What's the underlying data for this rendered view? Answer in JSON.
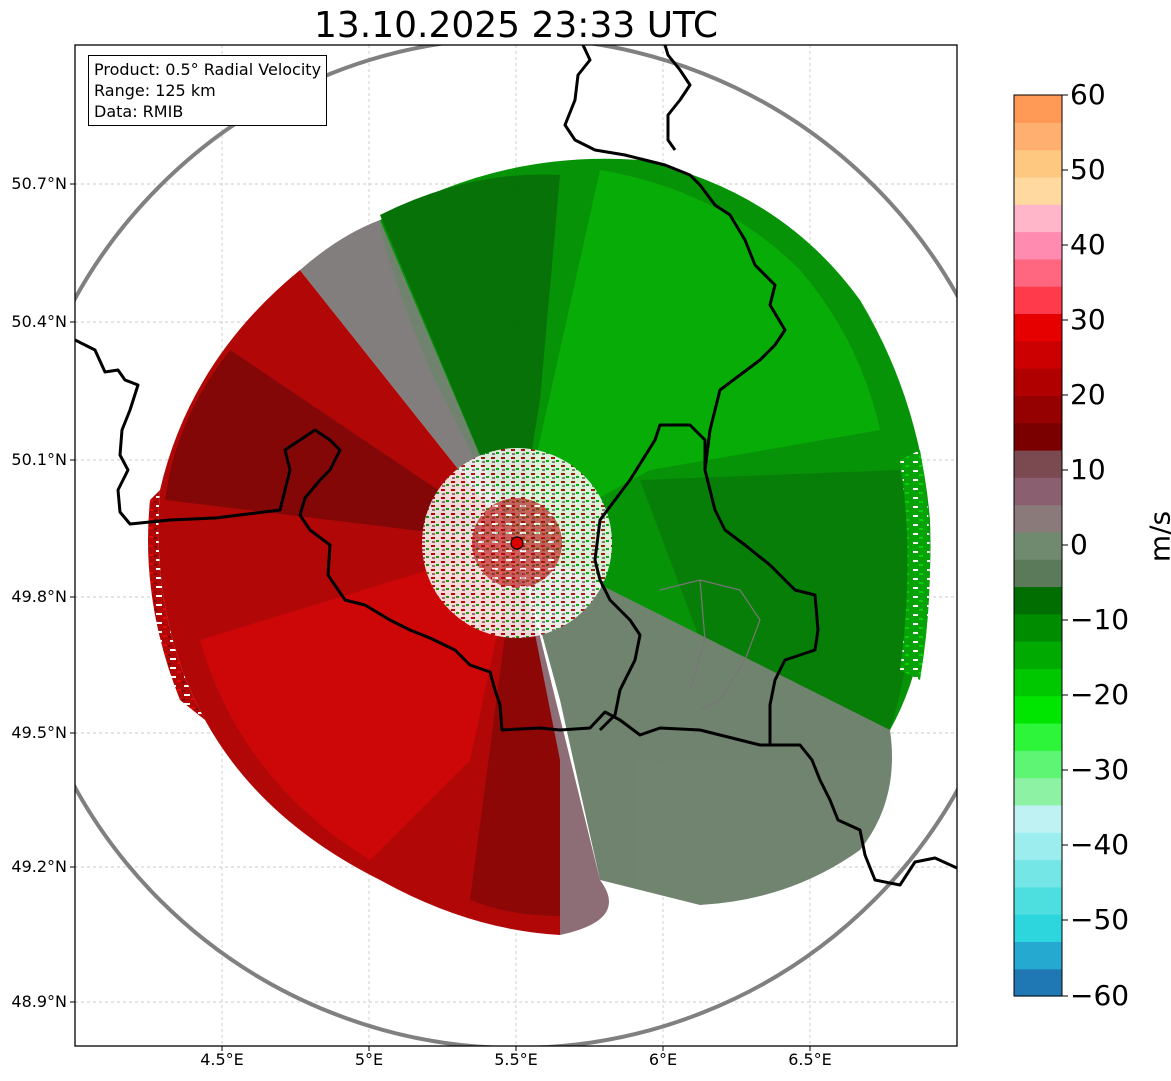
{
  "title": "13.10.2025 23:33 UTC",
  "info_box": {
    "product": "Product: 0.5° Radial Velocity",
    "range": "Range: 125 km",
    "data": "Data: RMIB"
  },
  "axes": {
    "lat_ticks": [
      "50.7°N",
      "50.4°N",
      "50.1°N",
      "49.8°N",
      "49.5°N",
      "49.2°N",
      "48.9°N"
    ],
    "lon_ticks": [
      "4.5°E",
      "5°E",
      "5.5°E",
      "6°E",
      "6.5°E"
    ]
  },
  "colorbar": {
    "label": "m/s",
    "ticks": [
      "60",
      "50",
      "40",
      "30",
      "20",
      "10",
      "0",
      "−10",
      "−20",
      "−30",
      "−40",
      "−50",
      "−60"
    ],
    "min": -60,
    "max": 60,
    "colors": [
      "#1f77b4",
      "#26a9d0",
      "#2cd6dc",
      "#4ddfe0",
      "#74e6e6",
      "#9ceded",
      "#bff2f2",
      "#8ef2a5",
      "#5ef575",
      "#2cf53a",
      "#00e600",
      "#00c800",
      "#00aa00",
      "#008c00",
      "#006e00",
      "#5a7a5a",
      "#6f8a6f",
      "#8a7a7a",
      "#8a6070",
      "#7a4a50",
      "#7a0000",
      "#950000",
      "#b00000",
      "#cc0000",
      "#e60000",
      "#ff3a4a",
      "#ff6680",
      "#ff8cb0",
      "#ffb6c8",
      "#ffd9a0",
      "#ffc880",
      "#ffb070",
      "#ff9955"
    ]
  },
  "radar": {
    "site": "radar-site",
    "range_km": 125
  },
  "colors": {
    "approaching": "#009900",
    "receding": "#cc0000",
    "zero": "#6b806b",
    "range_ring": "#808080",
    "border": "#000000"
  }
}
